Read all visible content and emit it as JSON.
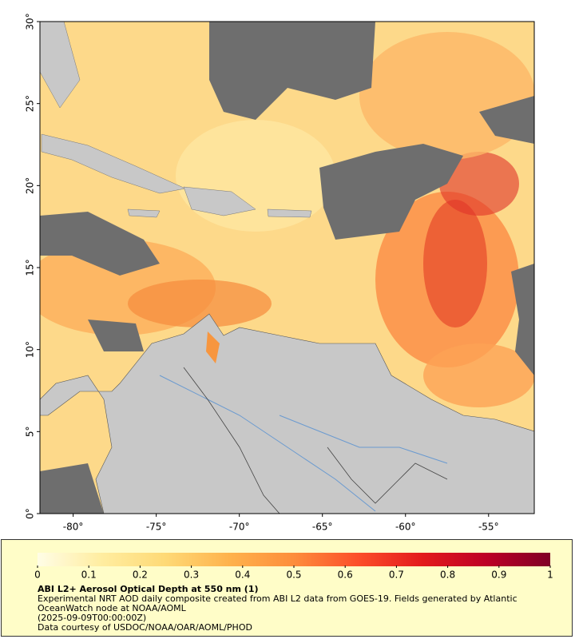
{
  "chart_data": {
    "type": "map",
    "xlim": [
      -82,
      -52.25
    ],
    "ylim": [
      0,
      30
    ],
    "xticks": [
      {
        "value": -80,
        "label": "-80°"
      },
      {
        "value": -75,
        "label": "-75°"
      },
      {
        "value": -70,
        "label": "-70°"
      },
      {
        "value": -65,
        "label": "-65°"
      },
      {
        "value": -60,
        "label": "-60°"
      },
      {
        "value": -55,
        "label": "-55°"
      }
    ],
    "yticks": [
      {
        "value": 0,
        "label": "0°"
      },
      {
        "value": 5,
        "label": "5°"
      },
      {
        "value": 10,
        "label": "10°"
      },
      {
        "value": 15,
        "label": "15°"
      },
      {
        "value": 20,
        "label": "20°"
      },
      {
        "value": 25,
        "label": "25°"
      },
      {
        "value": 30,
        "label": "30°"
      }
    ],
    "colorbar": {
      "lim": [
        0,
        1
      ],
      "ticks": [
        0,
        0.1,
        0.2,
        0.3,
        0.4,
        0.5,
        0.6,
        0.7,
        0.8,
        0.9,
        1
      ],
      "colors": [
        "#fffde6",
        "#ffeda0",
        "#fed976",
        "#feb24c",
        "#fd8d3c",
        "#fc4e2a",
        "#e31a1c",
        "#bd0026",
        "#800026"
      ]
    },
    "title": "ABI L2+ Aerosol Optical Depth at 550 nm (1)",
    "description": "Experimental NRT AOD daily composite created from ABI L2 data from GOES-19. Fields generated by Atlantic OceanWatch node at NOAA/AOML",
    "timestamp": "(2025-09-09T00:00:00Z)",
    "credit": "Data courtesy of USDOC/NOAA/OAR/AOML/PHOD"
  }
}
